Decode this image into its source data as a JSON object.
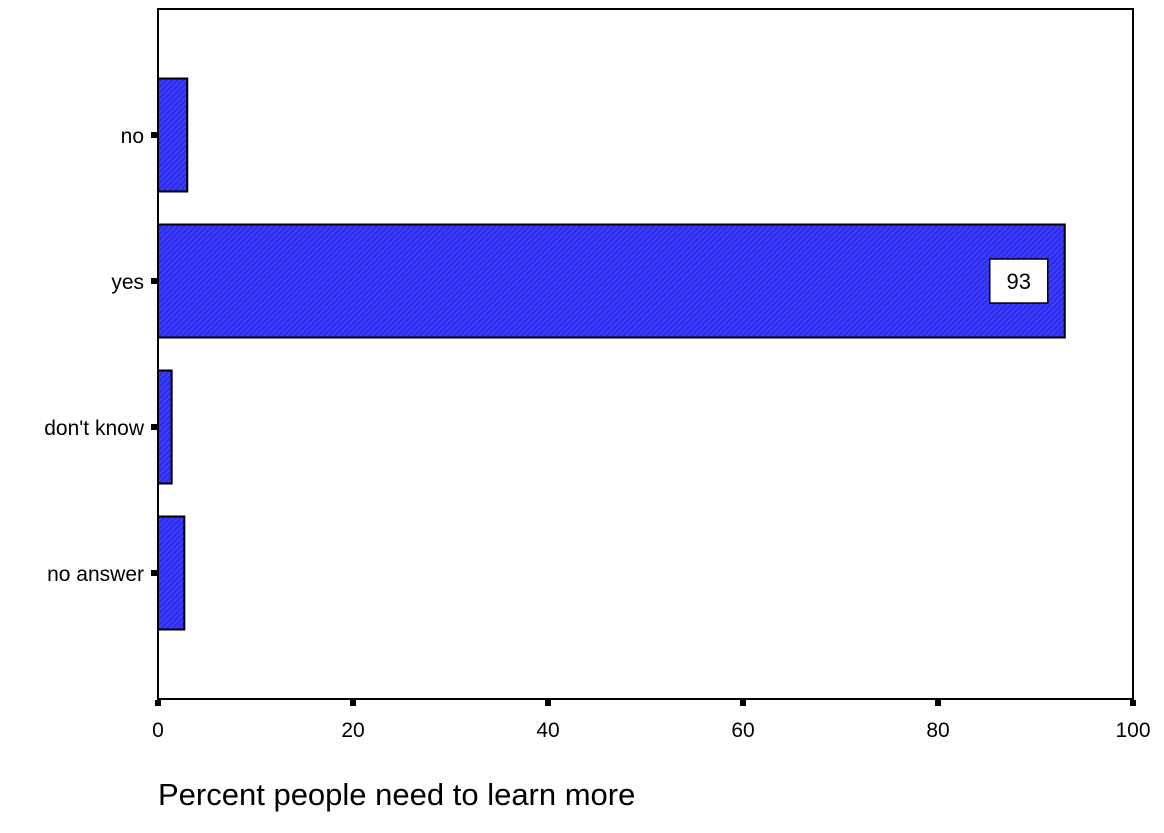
{
  "chart_data": {
    "type": "bar",
    "orientation": "horizontal",
    "categories": [
      "no",
      "yes",
      "don't know",
      "no answer"
    ],
    "values": [
      3,
      93,
      1.4,
      2.7
    ],
    "data_labels": [
      null,
      "93",
      null,
      null
    ],
    "xlabel": "Percent people need to learn more",
    "ylabel": "",
    "title": "",
    "xlim": [
      0,
      100
    ],
    "xticks": [
      0,
      20,
      40,
      60,
      80,
      100
    ],
    "xtick_labels": [
      "0",
      "20",
      "40",
      "60",
      "80",
      "100"
    ],
    "grid": false,
    "legend": "none",
    "bar_color": "#2e2ef0",
    "bar_pattern": "diagonal-hatch",
    "edge_color": "#000000"
  }
}
